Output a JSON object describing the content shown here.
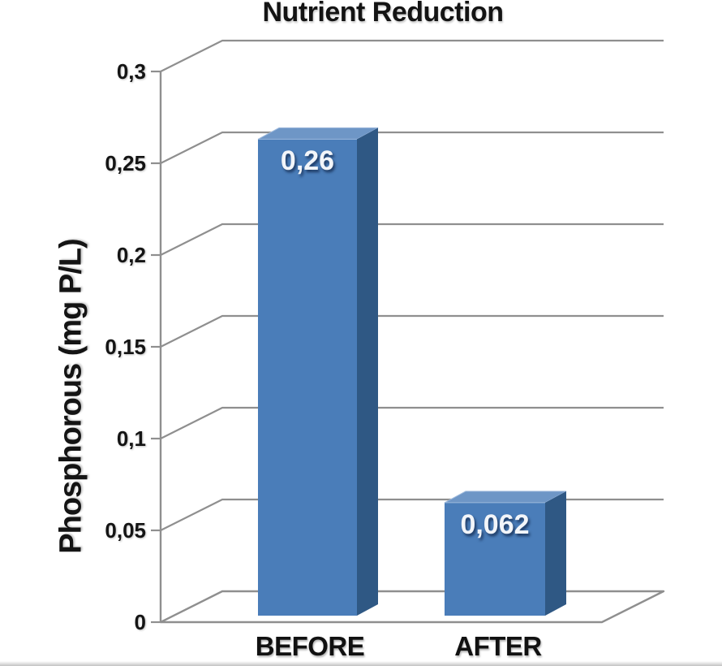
{
  "chart_data": {
    "type": "bar",
    "style": "3d-column",
    "title": "Nutrient Reduction",
    "ylabel": "Phosphorous (mg P/L)",
    "xlabel": "",
    "categories": [
      "BEFORE",
      "AFTER"
    ],
    "values": [
      0.26,
      0.062
    ],
    "value_labels": [
      "0,26",
      "0,062"
    ],
    "ylim": [
      0,
      0.3
    ],
    "ytick_step": 0.05,
    "decimal_separator": ",",
    "grid": true,
    "legend": "none",
    "yticks": [
      {
        "value": 0,
        "label": "0"
      },
      {
        "value": 0.05,
        "label": "0,05"
      },
      {
        "value": 0.1,
        "label": "0,1"
      },
      {
        "value": 0.15,
        "label": "0,15"
      },
      {
        "value": 0.2,
        "label": "0,2"
      },
      {
        "value": 0.25,
        "label": "0,25"
      },
      {
        "value": 0.3,
        "label": "0,3"
      }
    ],
    "colors": {
      "bar_front": "#4a7db9",
      "bar_top": "#6e96c6",
      "bar_side": "#2f5884",
      "bar_edge_highlight": "#9db9dc",
      "gridline": "#8f8f8f",
      "axis_text": "#141414",
      "value_label_text": "#f2f5f9",
      "background": "#ffffff"
    }
  }
}
